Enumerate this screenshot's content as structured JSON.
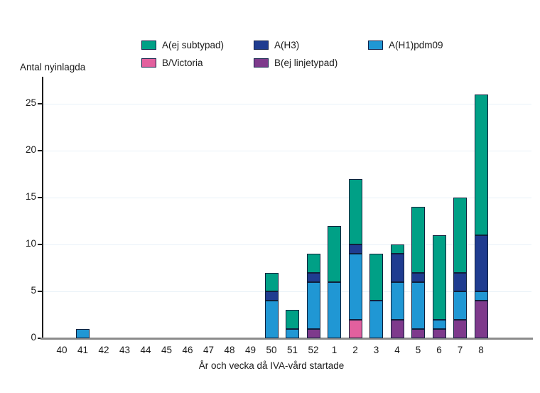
{
  "axes": {
    "y_title": "Antal nyinlagda",
    "x_title": "År och vecka då IVA-vård startade"
  },
  "legend": {
    "rows": [
      [
        {
          "label": "A(ej subtypad)",
          "color": "#00a086"
        },
        {
          "label": "A(H3)",
          "color": "#1f3c90"
        },
        {
          "label": "A(H1)pdm09",
          "color": "#2097d4"
        }
      ],
      [
        {
          "label": "B/Victoria",
          "color": "#e2609e"
        },
        {
          "label": "B(ej linjetypad)",
          "color": "#7e3a8c"
        }
      ]
    ]
  },
  "chart_data": {
    "type": "bar",
    "stacked": true,
    "title": "",
    "ylabel": "Antal nyinlagda",
    "xlabel": "År och vecka då IVA-vård startade",
    "ylim": [
      0,
      27
    ],
    "yticks": [
      0,
      5,
      10,
      15,
      20,
      25
    ],
    "grid": true,
    "legend_position": "top",
    "categories": [
      "40",
      "41",
      "42",
      "43",
      "44",
      "45",
      "46",
      "47",
      "48",
      "49",
      "50",
      "51",
      "52",
      "1",
      "2",
      "3",
      "4",
      "5",
      "6",
      "7",
      "8"
    ],
    "stack_order": "bottom-to-top as listed in series",
    "series": [
      {
        "name": "B(ej linjetypad)",
        "color": "#7e3a8c",
        "values": [
          0,
          0,
          0,
          0,
          0,
          0,
          0,
          0,
          0,
          0,
          0,
          0,
          1,
          0,
          0,
          0,
          2,
          1,
          1,
          2,
          4
        ]
      },
      {
        "name": "B/Victoria",
        "color": "#e2609e",
        "values": [
          0,
          0,
          0,
          0,
          0,
          0,
          0,
          0,
          0,
          0,
          0,
          0,
          0,
          0,
          2,
          0,
          0,
          0,
          0,
          0,
          0
        ]
      },
      {
        "name": "A(H1)pdm09",
        "color": "#2097d4",
        "values": [
          0,
          1,
          0,
          0,
          0,
          0,
          0,
          0,
          0,
          0,
          4,
          1,
          5,
          6,
          7,
          4,
          4,
          5,
          1,
          3,
          1
        ]
      },
      {
        "name": "A(H3)",
        "color": "#1f3c90",
        "values": [
          0,
          0,
          0,
          0,
          0,
          0,
          0,
          0,
          0,
          0,
          1,
          0,
          1,
          0,
          1,
          0,
          3,
          1,
          0,
          2,
          6
        ]
      },
      {
        "name": "A(ej subtypad)",
        "color": "#00a086",
        "values": [
          0,
          0,
          0,
          0,
          0,
          0,
          0,
          0,
          0,
          0,
          2,
          2,
          2,
          6,
          7,
          5,
          1,
          7,
          9,
          8,
          15
        ]
      }
    ],
    "totals": [
      0,
      1,
      0,
      0,
      0,
      0,
      0,
      0,
      0,
      0,
      7,
      3,
      9,
      12,
      17,
      9,
      10,
      14,
      11,
      15,
      26
    ]
  }
}
